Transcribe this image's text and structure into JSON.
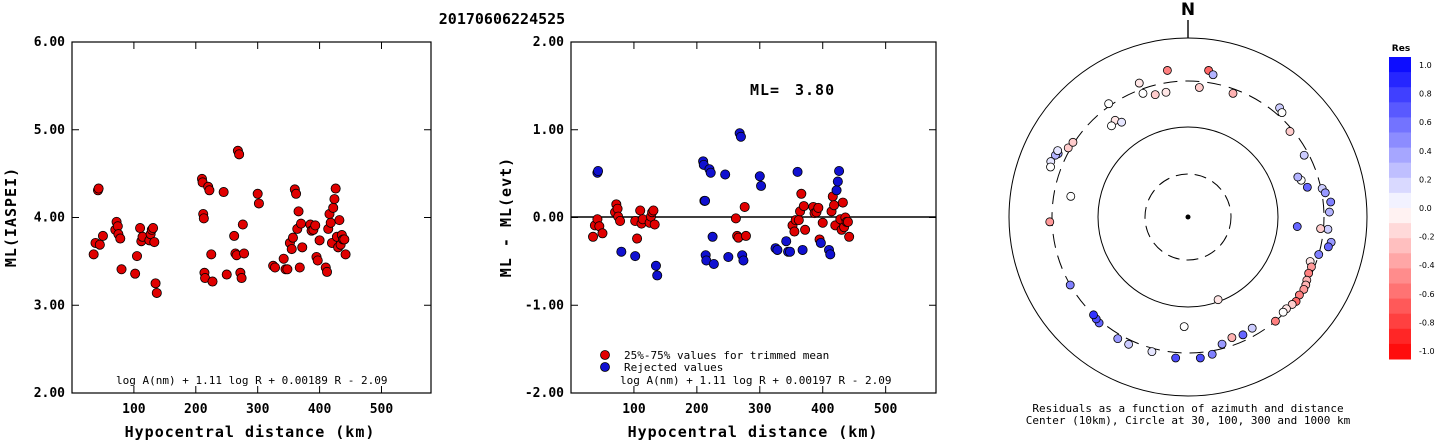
{
  "figure_title": "20170606224525",
  "chart_data": [
    {
      "type": "scatter",
      "xlabel": "Hypocentral distance (km)",
      "ylabel": "ML(IASPEI)",
      "xlim": [
        0,
        580
      ],
      "ylim": [
        2.0,
        6.0
      ],
      "xticks": [
        "100",
        "200",
        "300",
        "400",
        "500"
      ],
      "yticks": [
        "2.00",
        "3.00",
        "4.00",
        "5.00",
        "6.00"
      ],
      "formula": "log A(nm) + 1.11 log R + 0.00189 R - 2.09",
      "marker_color": "#e00000",
      "points": [
        [
          35,
          3.58
        ],
        [
          38,
          3.71
        ],
        [
          42,
          4.31
        ],
        [
          43,
          4.33
        ],
        [
          45,
          3.69
        ],
        [
          50,
          3.79
        ],
        [
          70,
          3.86
        ],
        [
          72,
          3.95
        ],
        [
          74,
          3.9
        ],
        [
          75,
          3.81
        ],
        [
          78,
          3.76
        ],
        [
          80,
          3.41
        ],
        [
          102,
          3.36
        ],
        [
          105,
          3.56
        ],
        [
          110,
          3.88
        ],
        [
          112,
          3.73
        ],
        [
          114,
          3.78
        ],
        [
          125,
          3.74
        ],
        [
          127,
          3.81
        ],
        [
          129,
          3.86
        ],
        [
          131,
          3.88
        ],
        [
          133,
          3.72
        ],
        [
          135,
          3.25
        ],
        [
          137,
          3.14
        ],
        [
          210,
          4.44
        ],
        [
          211,
          4.4
        ],
        [
          212,
          4.04
        ],
        [
          213,
          3.99
        ],
        [
          214,
          3.37
        ],
        [
          215,
          3.31
        ],
        [
          220,
          4.35
        ],
        [
          222,
          4.31
        ],
        [
          225,
          3.58
        ],
        [
          227,
          3.27
        ],
        [
          245,
          4.29
        ],
        [
          250,
          3.35
        ],
        [
          262,
          3.79
        ],
        [
          264,
          3.59
        ],
        [
          266,
          3.57
        ],
        [
          268,
          4.76
        ],
        [
          270,
          4.72
        ],
        [
          272,
          3.37
        ],
        [
          274,
          3.31
        ],
        [
          276,
          3.92
        ],
        [
          278,
          3.59
        ],
        [
          300,
          4.27
        ],
        [
          302,
          4.16
        ],
        [
          325,
          3.45
        ],
        [
          328,
          3.43
        ],
        [
          342,
          3.53
        ],
        [
          345,
          3.41
        ],
        [
          348,
          3.41
        ],
        [
          352,
          3.71
        ],
        [
          355,
          3.64
        ],
        [
          357,
          3.77
        ],
        [
          360,
          4.32
        ],
        [
          362,
          4.27
        ],
        [
          364,
          3.87
        ],
        [
          366,
          4.07
        ],
        [
          368,
          3.43
        ],
        [
          370,
          3.93
        ],
        [
          372,
          3.66
        ],
        [
          385,
          3.92
        ],
        [
          387,
          3.85
        ],
        [
          390,
          3.86
        ],
        [
          393,
          3.91
        ],
        [
          395,
          3.55
        ],
        [
          397,
          3.51
        ],
        [
          400,
          3.74
        ],
        [
          410,
          3.43
        ],
        [
          412,
          3.38
        ],
        [
          414,
          3.87
        ],
        [
          416,
          4.04
        ],
        [
          418,
          3.94
        ],
        [
          420,
          3.71
        ],
        [
          422,
          4.11
        ],
        [
          424,
          4.21
        ],
        [
          426,
          4.33
        ],
        [
          428,
          3.78
        ],
        [
          430,
          3.66
        ],
        [
          432,
          3.97
        ],
        [
          434,
          3.69
        ],
        [
          436,
          3.8
        ],
        [
          438,
          3.75
        ],
        [
          440,
          3.75
        ],
        [
          442,
          3.58
        ]
      ]
    },
    {
      "type": "scatter",
      "xlabel": "Hypocentral distance (km)",
      "ylabel": "ML - ML(evt)",
      "xlim": [
        0,
        580
      ],
      "ylim": [
        -2.0,
        2.0
      ],
      "xticks": [
        "100",
        "200",
        "300",
        "400",
        "500"
      ],
      "yticks": [
        "-2.00",
        "-1.00",
        "0.00",
        "1.00",
        "2.00"
      ],
      "formula": "log A(nm) + 1.11 log R + 0.00197 R - 2.09",
      "ml_label": "ML=",
      "ml_value": "3.80",
      "legend": [
        "25%-75% values for trimmed mean",
        "Rejected values"
      ],
      "trimmed_color": "#e00000",
      "rejected_color": "#1010d0",
      "series": [
        {
          "name": "25%-75% values for trimmed mean",
          "points": [
            [
              35,
              -0.22
            ],
            [
              38,
              -0.09
            ],
            [
              42,
              -0.02
            ],
            [
              45,
              -0.1
            ],
            [
              50,
              -0.18
            ],
            [
              70,
              0.06
            ],
            [
              72,
              0.15
            ],
            [
              74,
              0.1
            ],
            [
              75,
              0.01
            ],
            [
              78,
              -0.04
            ],
            [
              102,
              -0.04
            ],
            [
              105,
              -0.24
            ],
            [
              110,
              0.08
            ],
            [
              112,
              -0.07
            ],
            [
              114,
              -0.02
            ],
            [
              125,
              -0.06
            ],
            [
              127,
              0.01
            ],
            [
              129,
              0.06
            ],
            [
              131,
              0.08
            ],
            [
              133,
              -0.08
            ],
            [
              212,
              0.19
            ],
            [
              262,
              -0.01
            ],
            [
              264,
              -0.21
            ],
            [
              266,
              -0.23
            ],
            [
              276,
              0.12
            ],
            [
              278,
              -0.21
            ],
            [
              352,
              -0.09
            ],
            [
              355,
              -0.16
            ],
            [
              357,
              -0.03
            ],
            [
              362,
              -0.03
            ],
            [
              364,
              0.07
            ],
            [
              366,
              0.27
            ],
            [
              370,
              0.13
            ],
            [
              372,
              -0.14
            ],
            [
              385,
              0.12
            ],
            [
              387,
              0.05
            ],
            [
              390,
              0.06
            ],
            [
              393,
              0.11
            ],
            [
              395,
              -0.25
            ],
            [
              400,
              -0.06
            ],
            [
              414,
              0.07
            ],
            [
              416,
              0.24
            ],
            [
              418,
              0.14
            ],
            [
              420,
              -0.09
            ],
            [
              428,
              -0.02
            ],
            [
              430,
              -0.14
            ],
            [
              432,
              0.17
            ],
            [
              434,
              -0.11
            ],
            [
              436,
              0.0
            ],
            [
              438,
              -0.05
            ],
            [
              440,
              -0.05
            ],
            [
              442,
              -0.22
            ]
          ]
        },
        {
          "name": "Rejected values",
          "points": [
            [
              42,
              0.51
            ],
            [
              43,
              0.53
            ],
            [
              80,
              -0.39
            ],
            [
              102,
              -0.44
            ],
            [
              135,
              -0.55
            ],
            [
              137,
              -0.66
            ],
            [
              210,
              0.64
            ],
            [
              211,
              0.6
            ],
            [
              213,
              0.19
            ],
            [
              214,
              -0.43
            ],
            [
              215,
              -0.49
            ],
            [
              220,
              0.55
            ],
            [
              222,
              0.51
            ],
            [
              225,
              -0.22
            ],
            [
              227,
              -0.53
            ],
            [
              245,
              0.49
            ],
            [
              250,
              -0.45
            ],
            [
              268,
              0.96
            ],
            [
              270,
              0.92
            ],
            [
              272,
              -0.43
            ],
            [
              274,
              -0.49
            ],
            [
              300,
              0.47
            ],
            [
              302,
              0.36
            ],
            [
              325,
              -0.35
            ],
            [
              328,
              -0.37
            ],
            [
              342,
              -0.27
            ],
            [
              345,
              -0.39
            ],
            [
              348,
              -0.39
            ],
            [
              360,
              0.52
            ],
            [
              368,
              -0.37
            ],
            [
              397,
              -0.29
            ],
            [
              410,
              -0.37
            ],
            [
              412,
              -0.42
            ],
            [
              422,
              0.31
            ],
            [
              424,
              0.41
            ],
            [
              426,
              0.53
            ]
          ]
        }
      ]
    }
  ],
  "polar": {
    "north_label": "N",
    "caption_line1": "Residuals as a function of azimuth and distance",
    "caption_line2": "Center (10km), Circle at 30, 100, 300 and 1000 km",
    "rings_km": [
      30,
      100,
      300,
      1000
    ],
    "points_az_dist_res": [
      [
        352,
        420,
        -0.5
      ],
      [
        8,
        420,
        -0.6
      ],
      [
        10,
        380,
        0.3
      ],
      [
        340,
        360,
        -0.1
      ],
      [
        325,
        320,
        0.0
      ],
      [
        340,
        270,
        0.0
      ],
      [
        345,
        240,
        -0.2
      ],
      [
        350,
        240,
        -0.1
      ],
      [
        5,
        260,
        -0.2
      ],
      [
        20,
        270,
        -0.3
      ],
      [
        323,
        210,
        -0.1
      ],
      [
        320,
        200,
        0.0
      ],
      [
        325,
        185,
        0.1
      ],
      [
        300,
        320,
        -0.2
      ],
      [
        303,
        310,
        -0.2
      ],
      [
        296,
        380,
        0.4
      ],
      [
        295,
        400,
        0.3
      ],
      [
        297,
        400,
        0.1
      ],
      [
        292,
        420,
        0.1
      ],
      [
        290,
        400,
        0.0
      ],
      [
        280,
        200,
        0.0
      ],
      [
        268,
        320,
        -0.4
      ],
      [
        40,
        360,
        0.2
      ],
      [
        42,
        340,
        0.0
      ],
      [
        50,
        280,
        -0.2
      ],
      [
        62,
        270,
        0.2
      ],
      [
        72,
        200,
        0.0
      ],
      [
        70,
        190,
        0.3
      ],
      [
        76,
        220,
        0.6
      ],
      [
        78,
        310,
        0.2
      ],
      [
        80,
        330,
        0.4
      ],
      [
        84,
        370,
        0.5
      ],
      [
        88,
        350,
        0.3
      ],
      [
        95,
        160,
        0.6
      ],
      [
        95,
        340,
        0.2
      ],
      [
        100,
        390,
        0.4
      ],
      [
        102,
        370,
        0.6
      ],
      [
        106,
        300,
        0.5
      ],
      [
        110,
        260,
        -0.1
      ],
      [
        112,
        280,
        -0.4
      ],
      [
        115,
        280,
        -0.5
      ],
      [
        118,
        290,
        -0.3
      ],
      [
        120,
        300,
        -0.3
      ],
      [
        122,
        305,
        -0.4
      ],
      [
        125,
        300,
        -0.5
      ],
      [
        128,
        310,
        -0.6
      ],
      [
        130,
        300,
        -0.2
      ],
      [
        133,
        290,
        -0.1
      ],
      [
        135,
        290,
        0.0
      ],
      [
        140,
        300,
        -0.5
      ],
      [
        150,
        250,
        0.2
      ],
      [
        155,
        260,
        0.6
      ],
      [
        160,
        250,
        -0.3
      ],
      [
        165,
        270,
        0.4
      ],
      [
        170,
        330,
        0.5
      ],
      [
        175,
        350,
        0.7
      ],
      [
        185,
        350,
        0.7
      ],
      [
        195,
        330,
        0.1
      ],
      [
        205,
        340,
        0.2
      ],
      [
        210,
        340,
        0.4
      ],
      [
        220,
        320,
        0.6
      ],
      [
        222,
        310,
        0.7
      ],
      [
        224,
        300,
        0.8
      ],
      [
        240,
        300,
        0.5
      ],
      [
        95,
        280,
        -0.2
      ],
      [
        182,
        160,
        0.0
      ],
      [
        160,
        95,
        -0.1
      ]
    ]
  },
  "colorbar": {
    "title": "Res",
    "labels": [
      "1.0",
      "0.8",
      "0.6",
      "0.4",
      "0.2",
      "0.0",
      "-0.2",
      "-0.4",
      "-0.6",
      "-0.8",
      "-1.0"
    ]
  }
}
